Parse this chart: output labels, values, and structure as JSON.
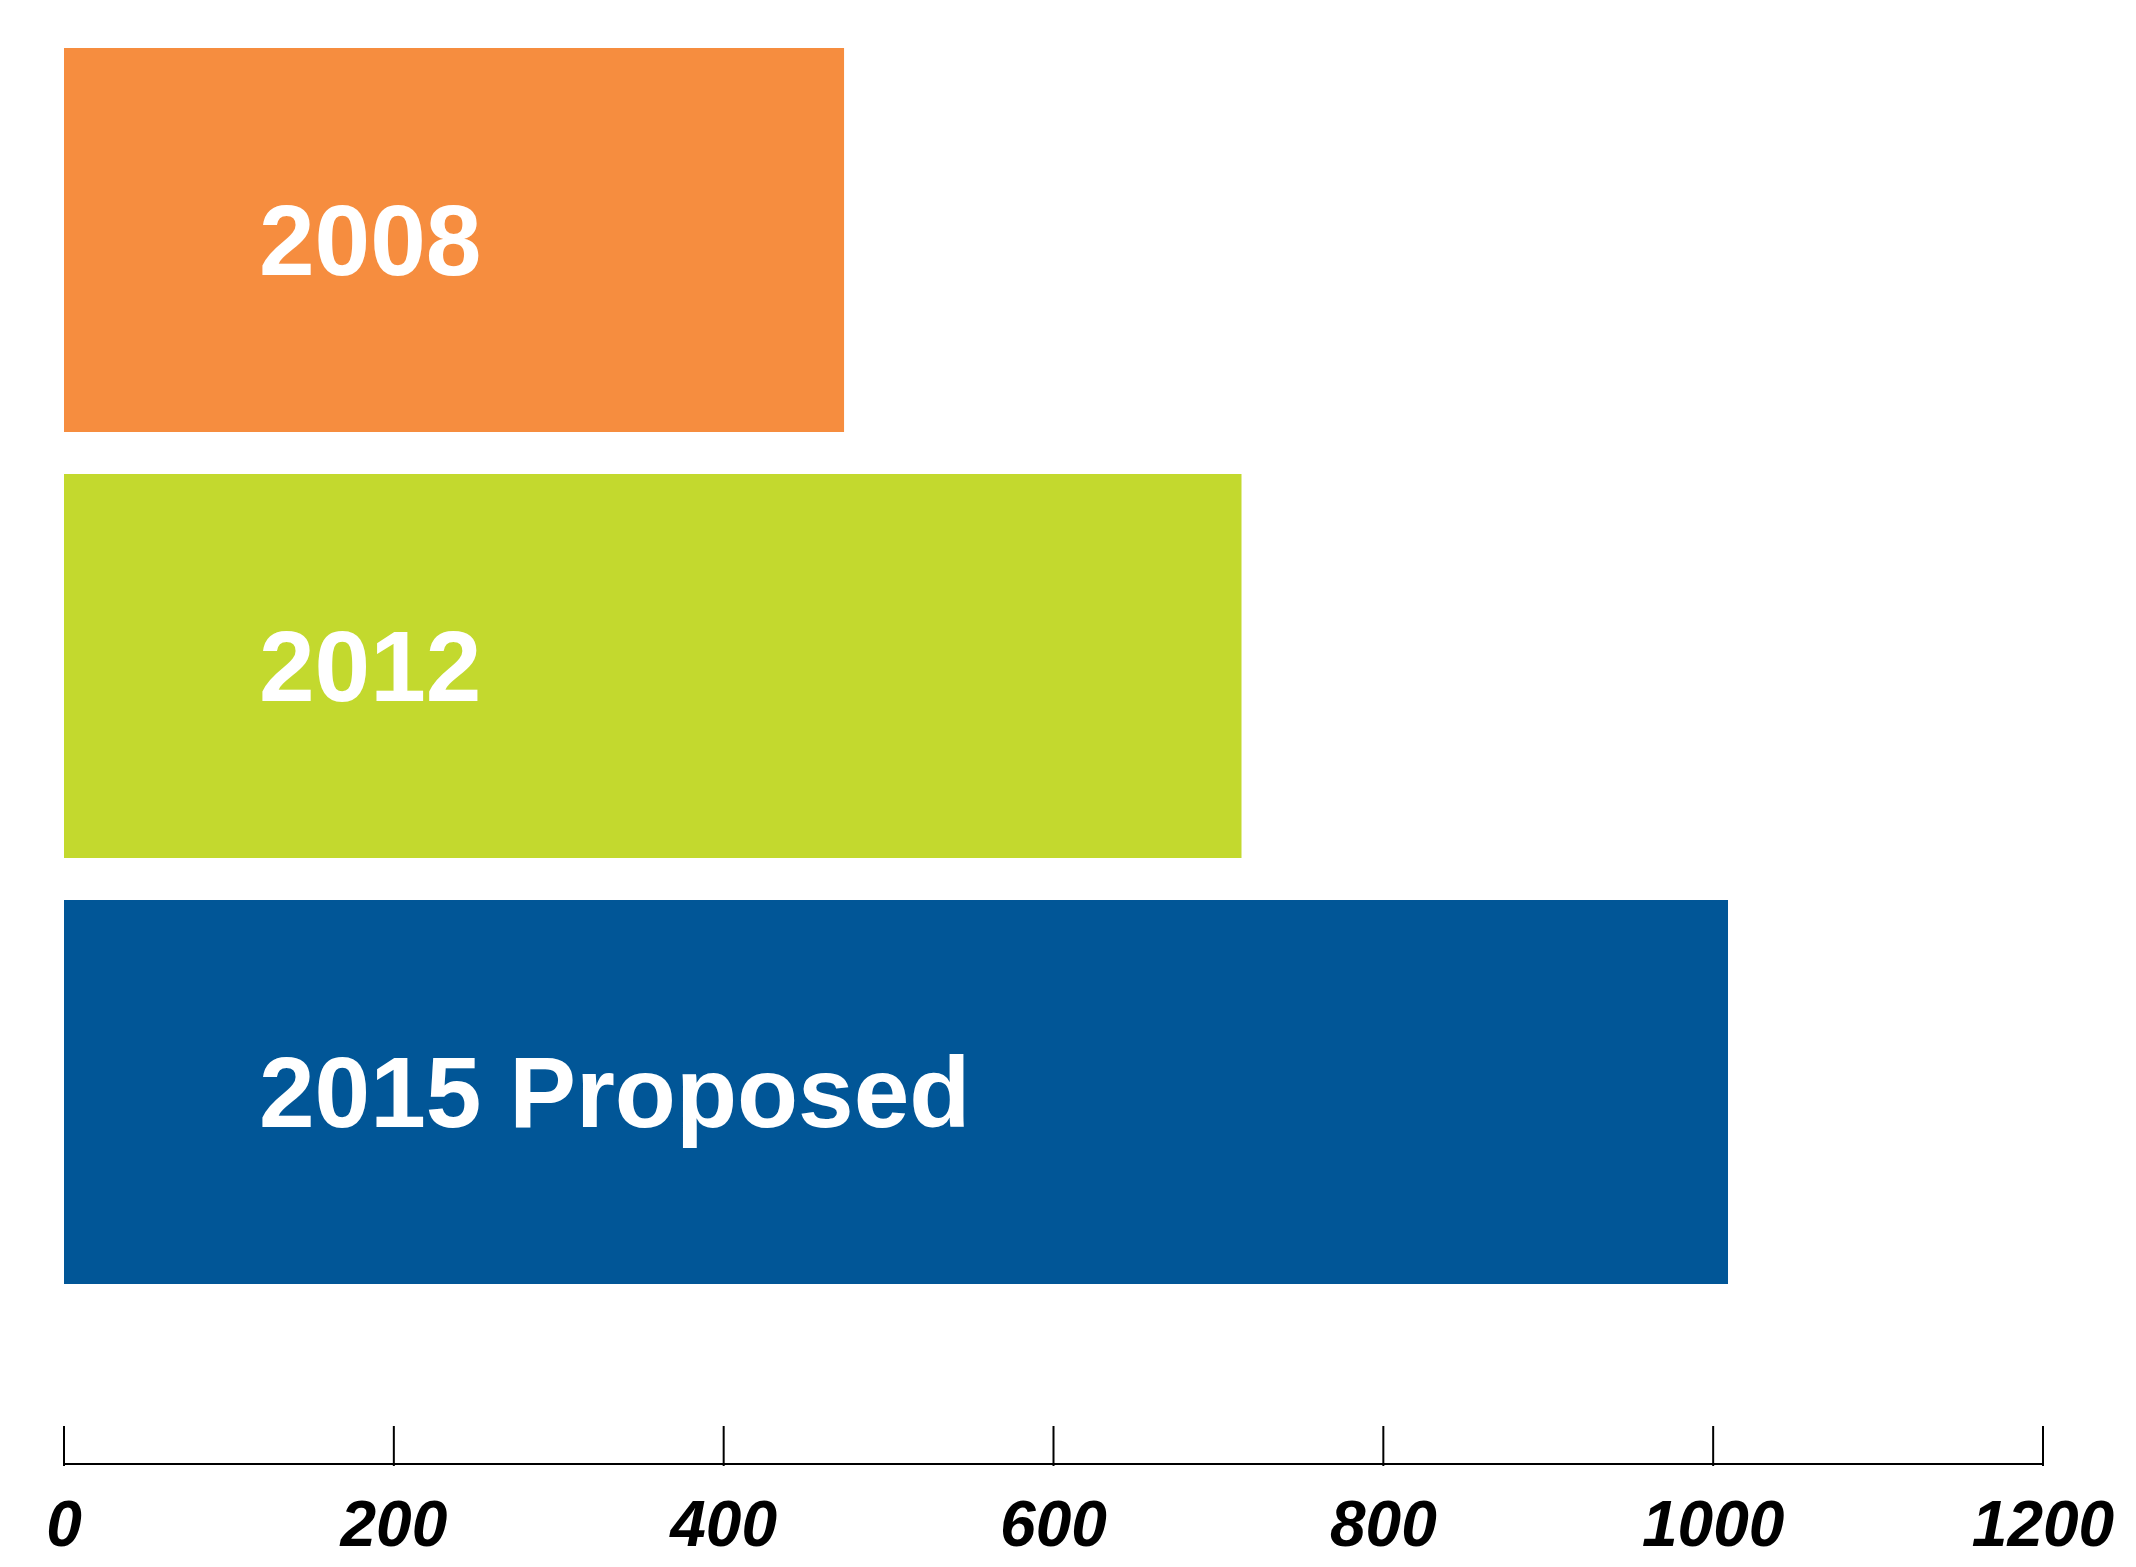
{
  "chart_data": {
    "type": "bar",
    "orientation": "horizontal",
    "categories": [
      "2008",
      "2012",
      "2015 Proposed"
    ],
    "values": [
      473,
      714,
      1009
    ],
    "colors": [
      "#f68d3f",
      "#c3d92e",
      "#015697"
    ],
    "xlim": [
      0,
      1200
    ],
    "xticks": [
      0,
      200,
      400,
      600,
      800,
      1000,
      1200
    ]
  }
}
